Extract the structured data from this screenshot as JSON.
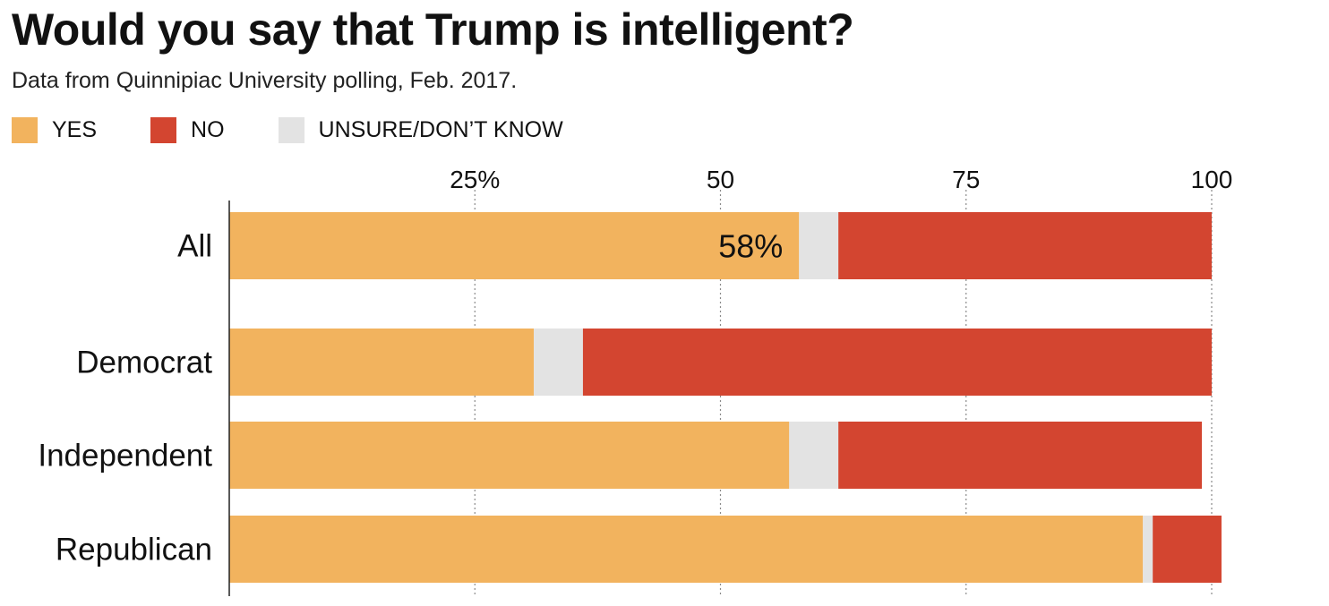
{
  "title": "Would you say that Trump is intelligent?",
  "subtitle": "Data from Quinnipiac University polling, Feb. 2017.",
  "legend": [
    {
      "label": "YES",
      "color": "#f2b35e"
    },
    {
      "label": "NO",
      "color": "#d34530"
    },
    {
      "label": "UNSURE/DON’T KNOW",
      "color": "#e3e3e3"
    }
  ],
  "chart_data": {
    "type": "bar",
    "orientation": "horizontal",
    "stacked": true,
    "title": "Would you say that Trump is intelligent?",
    "subtitle": "Data from Quinnipiac University polling, Feb. 2017.",
    "categories": [
      "All",
      "Democrat",
      "Independent",
      "Republican"
    ],
    "series": [
      {
        "name": "YES",
        "color": "#f2b35e",
        "values": [
          58,
          31,
          57,
          93
        ]
      },
      {
        "name": "UNSURE/DON’T KNOW",
        "color": "#e3e3e3",
        "values": [
          4,
          5,
          5,
          1
        ]
      },
      {
        "name": "NO",
        "color": "#d34530",
        "values": [
          38,
          64,
          37,
          7
        ]
      }
    ],
    "xlim": [
      0,
      100
    ],
    "x_ticks": [
      {
        "value": 25,
        "label": "25%"
      },
      {
        "value": 50,
        "label": "50"
      },
      {
        "value": 75,
        "label": "75"
      },
      {
        "value": 100,
        "label": "100"
      }
    ],
    "annotations": [
      {
        "category": "All",
        "series": "YES",
        "text": "58%"
      }
    ],
    "grid": true,
    "legend_position": "top-left"
  }
}
